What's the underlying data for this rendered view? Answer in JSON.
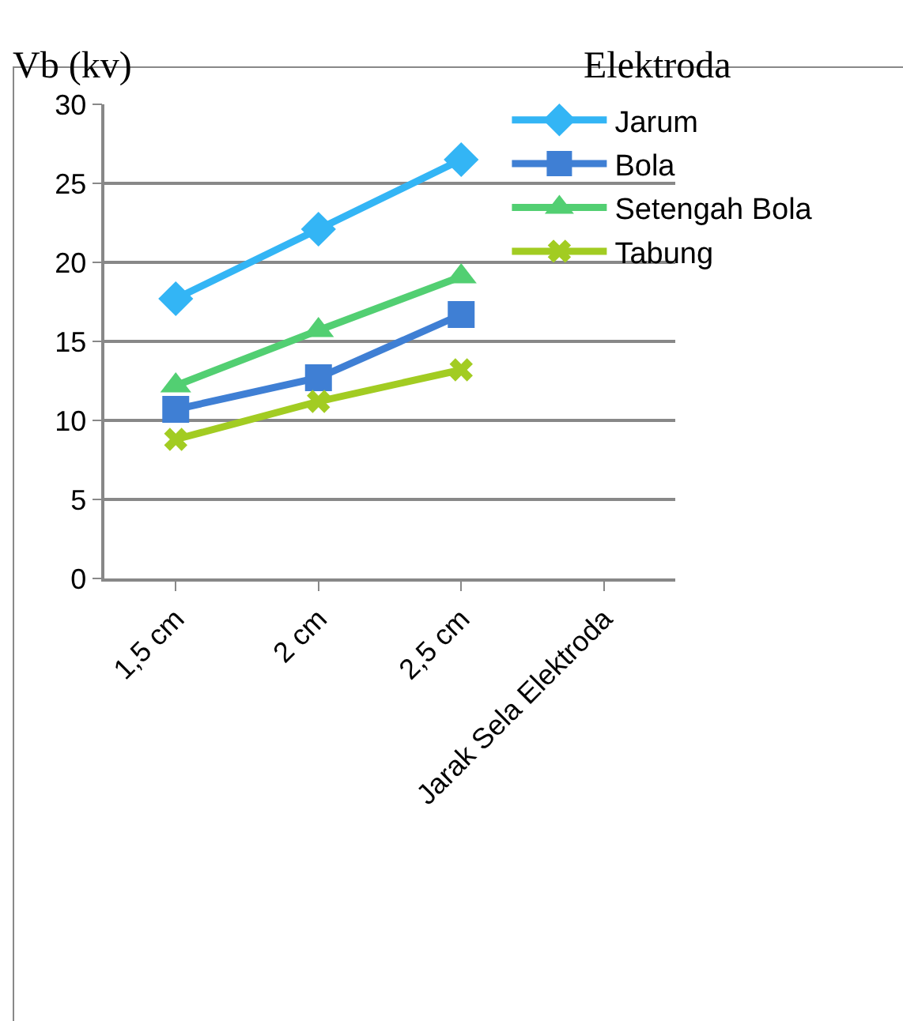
{
  "chart_data": {
    "type": "line",
    "ylabel": "Vb (kv)",
    "annotations": [
      "Elektroda"
    ],
    "categories": [
      "1,5 cm",
      "2 cm",
      "2,5 cm",
      "Jarak Sela Elektroda"
    ],
    "series": [
      {
        "name": "Jarum",
        "color": "#33b5f5",
        "marker": "diamond",
        "values": [
          17.7,
          22.1,
          26.5,
          null
        ]
      },
      {
        "name": "Bola",
        "color": "#3f7fd4",
        "marker": "square",
        "values": [
          10.7,
          12.7,
          16.7,
          null
        ]
      },
      {
        "name": "Setengah Bola",
        "color": "#52cf72",
        "marker": "triangle",
        "values": [
          12.2,
          15.7,
          19.1,
          null
        ]
      },
      {
        "name": "Tabung",
        "color": "#a2cc22",
        "marker": "cross",
        "values": [
          8.8,
          11.2,
          13.2,
          null
        ]
      }
    ],
    "ylim": [
      0,
      30
    ],
    "yticks": [
      0,
      5,
      10,
      15,
      20,
      25,
      30
    ],
    "grid": "y",
    "legend": "top right",
    "line_style": "solid"
  }
}
